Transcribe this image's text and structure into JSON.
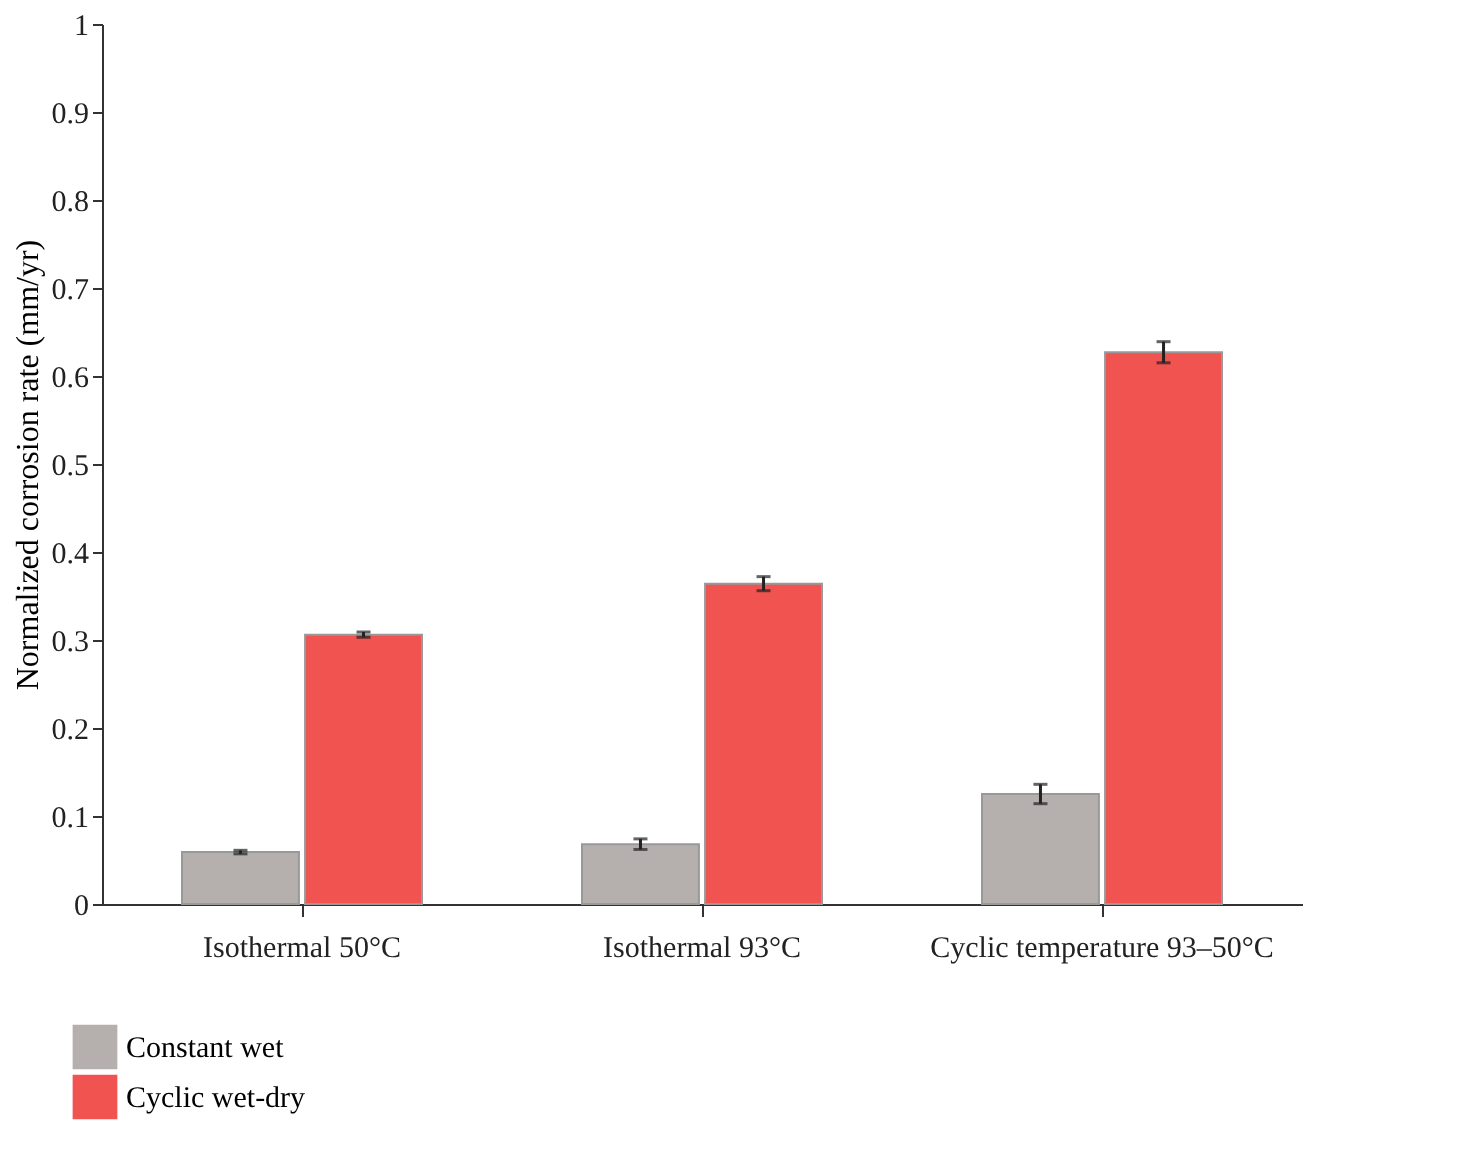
{
  "chart_data": {
    "type": "bar",
    "ylabel": "Normalized corrosion rate (mm/yr)",
    "categories": [
      "Isothermal 50°C",
      "Isothermal 93°C",
      "Cyclic temperature 93–50°C"
    ],
    "series": [
      {
        "name": "Constant wet",
        "color": "#b5afad",
        "values": [
          0.059,
          0.068,
          0.125
        ],
        "errors": [
          0.002,
          0.006,
          0.011
        ]
      },
      {
        "name": "Cyclic wet-dry",
        "color": "#f05350",
        "values": [
          0.306,
          0.364,
          0.627
        ],
        "errors": [
          0.003,
          0.008,
          0.012
        ]
      }
    ],
    "ylim": [
      0,
      1
    ],
    "yticks": [
      0,
      0.1,
      0.2,
      0.3,
      0.4,
      0.5,
      0.6,
      0.7,
      0.8,
      0.9,
      1
    ],
    "grid": false,
    "legend": "bottom left"
  }
}
